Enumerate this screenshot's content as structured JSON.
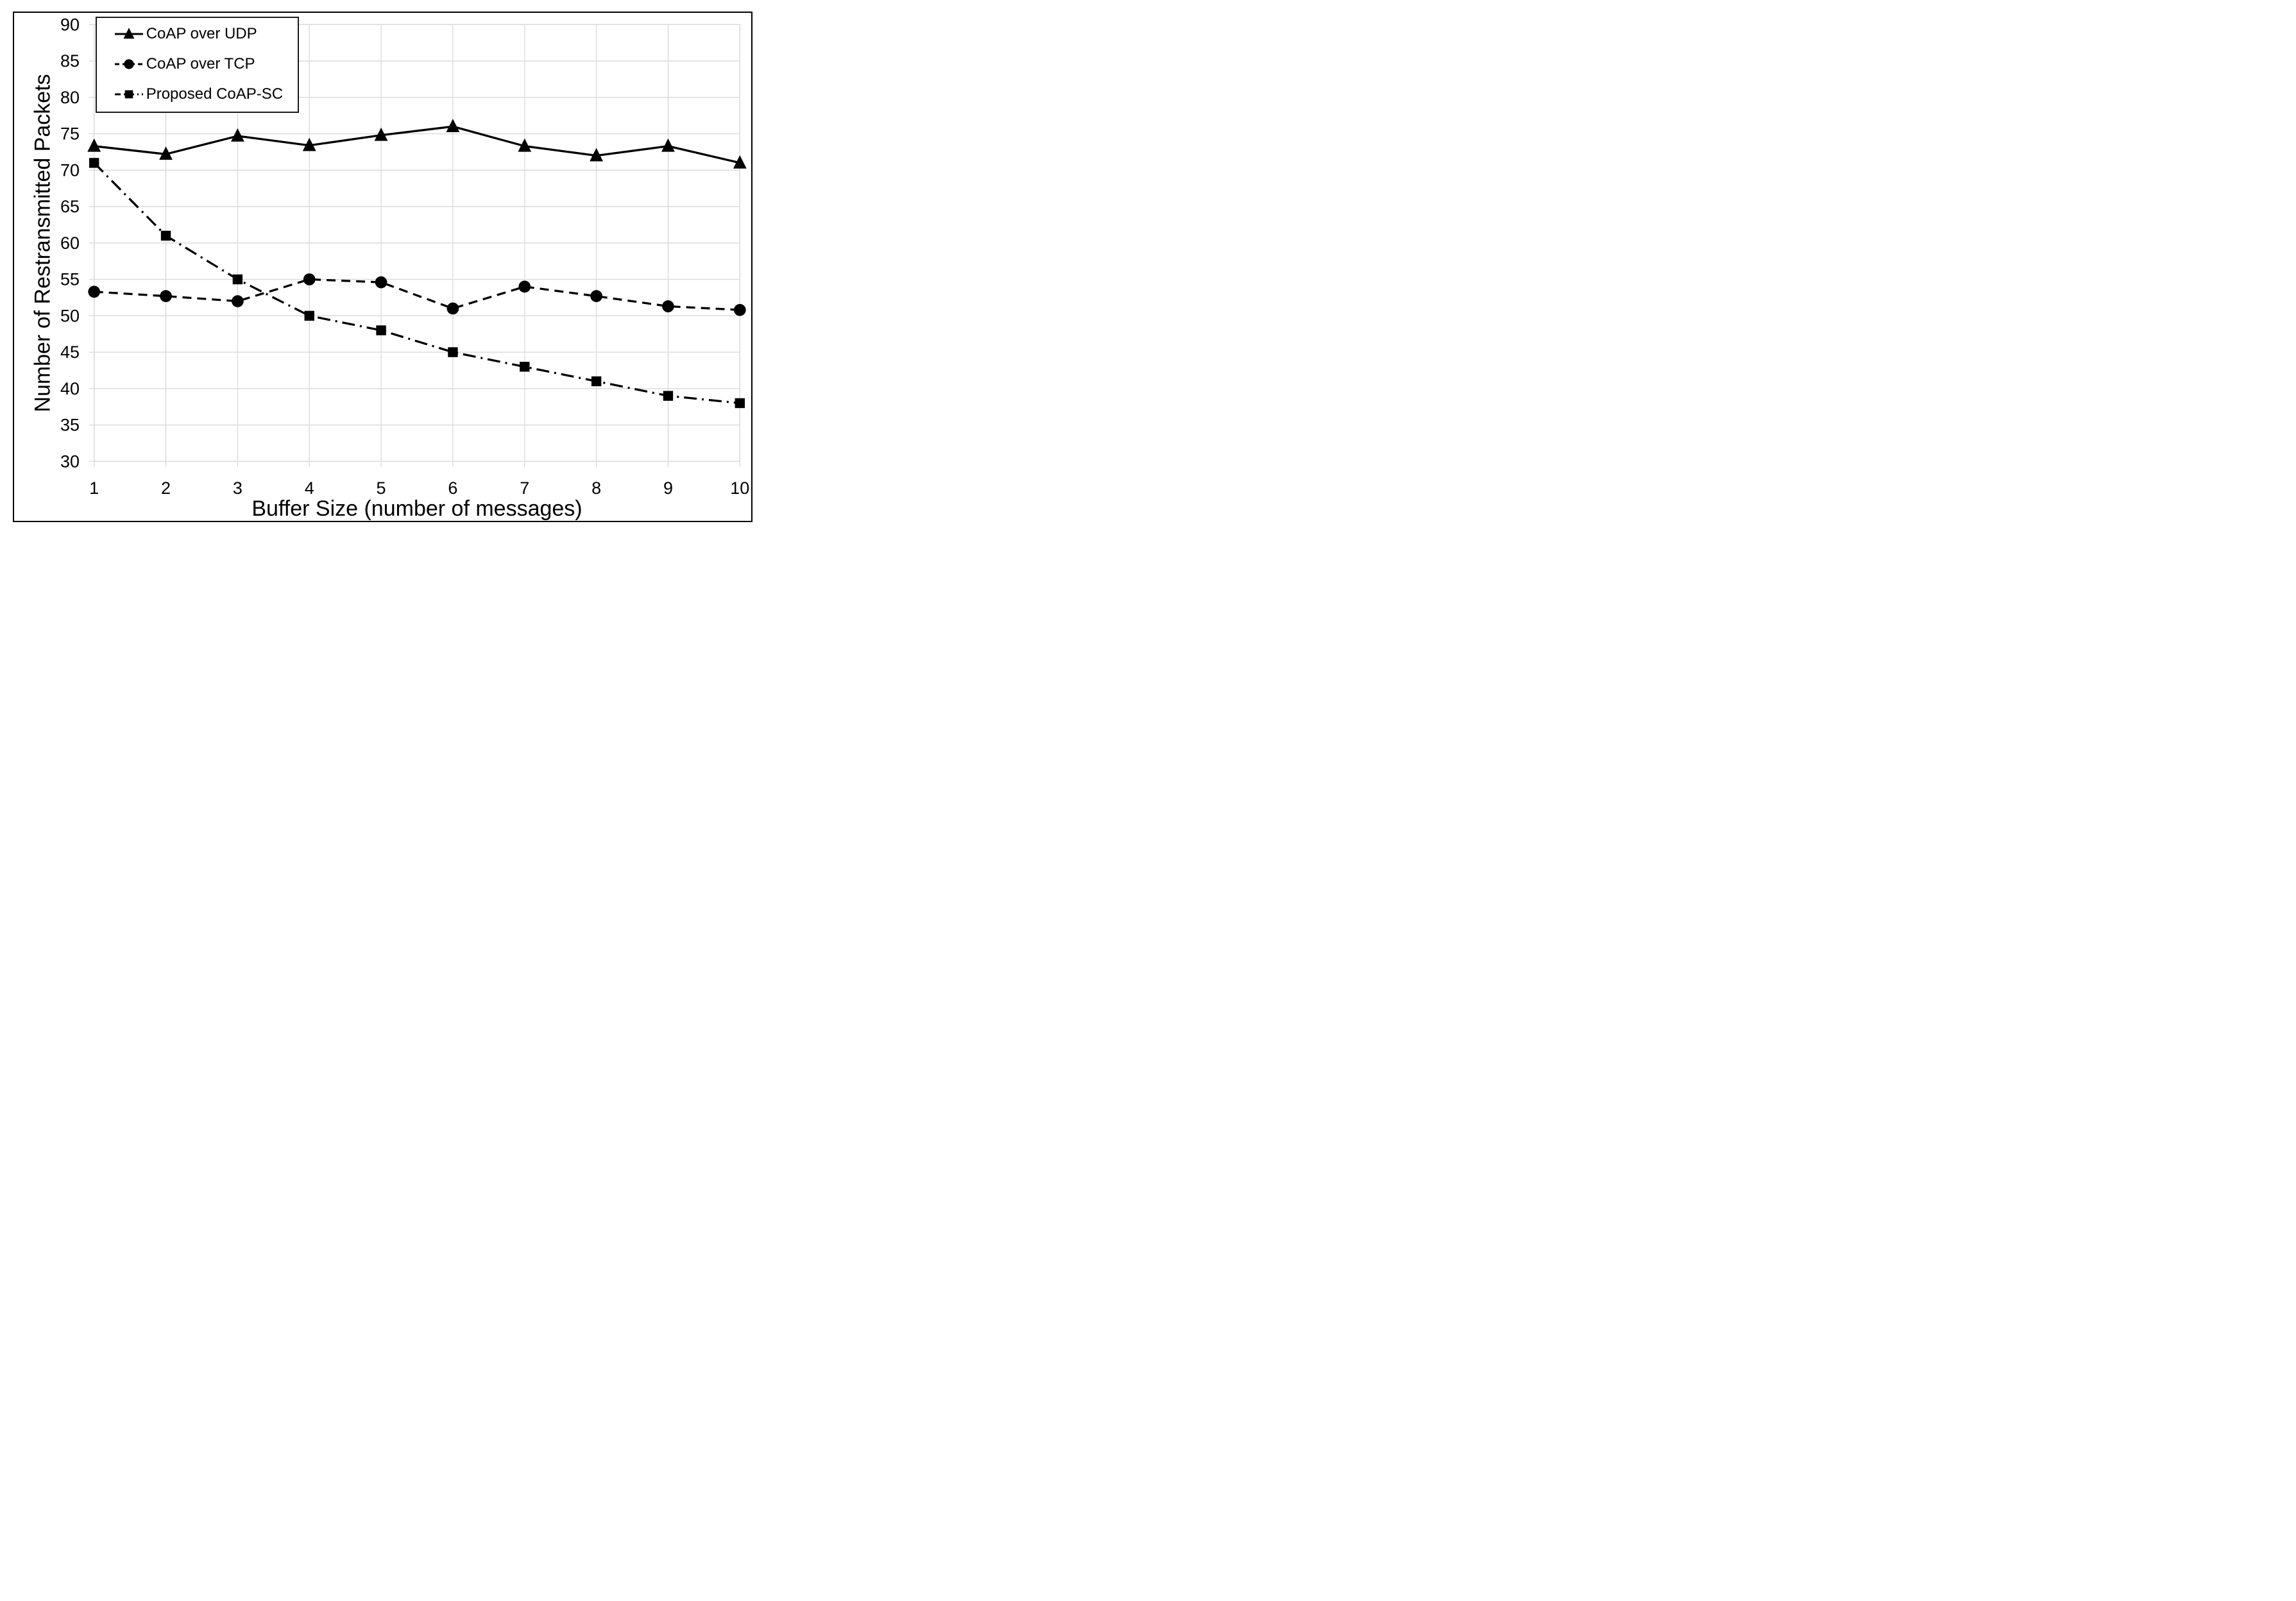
{
  "figure": {
    "background": "#ffffff",
    "border_color": "#000000"
  },
  "chart_data": {
    "type": "line",
    "title": "",
    "xlabel": "Buffer Size (number of messages)",
    "ylabel": "Number of Restransmitted Packets",
    "x": [
      1,
      2,
      3,
      4,
      5,
      6,
      7,
      8,
      9,
      10
    ],
    "xticks": [
      1,
      2,
      3,
      4,
      5,
      6,
      7,
      8,
      9,
      10
    ],
    "yticks": [
      30,
      35,
      40,
      45,
      50,
      55,
      60,
      65,
      70,
      75,
      80,
      85,
      90
    ],
    "xlim": [
      1,
      10
    ],
    "ylim": [
      30,
      90
    ],
    "grid": true,
    "gridline_color": "#d9d9d9",
    "series_color": "#000000",
    "legend_position": "top-left-inside",
    "series": [
      {
        "name": "CoAP over UDP",
        "marker": "triangle",
        "line_style": "solid",
        "values": [
          73.3,
          72.2,
          74.7,
          73.4,
          74.8,
          76,
          73.3,
          72,
          73.3,
          71
        ]
      },
      {
        "name": "CoAP over TCP",
        "marker": "circle",
        "line_style": "dashed",
        "values": [
          53.3,
          52.7,
          52,
          55,
          54.6,
          51,
          54,
          52.7,
          51.3,
          50.8
        ]
      },
      {
        "name": "Proposed CoAP-SC",
        "marker": "square",
        "line_style": "dash-dot",
        "values": [
          71,
          61,
          55,
          50,
          48,
          45,
          43,
          41,
          39,
          38
        ]
      }
    ]
  }
}
